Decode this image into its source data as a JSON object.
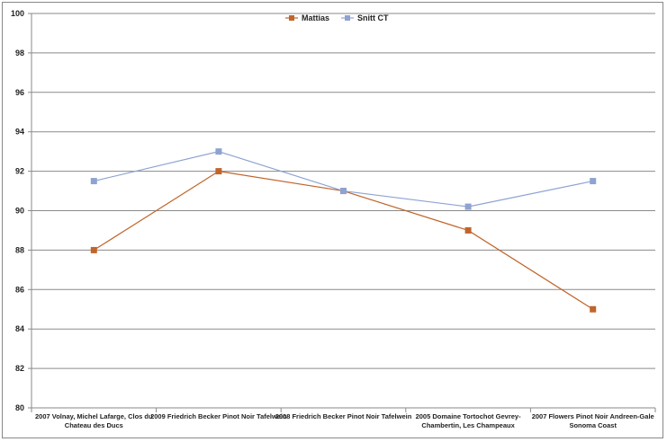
{
  "chart_data": {
    "type": "line",
    "title": "",
    "xlabel": "",
    "ylabel": "",
    "ylim": [
      80,
      100
    ],
    "yticks": [
      80,
      82,
      84,
      86,
      88,
      90,
      92,
      94,
      96,
      98,
      100
    ],
    "grid": true,
    "legend_position": "top",
    "categories": [
      [
        "2007 Volnay, Michel Lafarge, Clos du",
        "Chateau des Ducs"
      ],
      [
        "2009 Friedrich Becker Pinot Noir Tafelwein"
      ],
      [
        "2008 Friedrich Becker Pinot Noir Tafelwein"
      ],
      [
        "2005 Domaine Tortochot Gevrey-",
        "Chambertin, Les Champeaux"
      ],
      [
        "2007 Flowers Pinot Noir Andreen-Gale",
        "Sonoma Coast"
      ]
    ],
    "series": [
      {
        "name": "Mattias",
        "color": "#c0652b",
        "values": [
          88,
          92,
          91,
          89,
          85
        ]
      },
      {
        "name": "Snitt CT",
        "color": "#8ea3d1",
        "values": [
          91.5,
          93,
          91,
          90.2,
          91.5
        ]
      }
    ]
  }
}
